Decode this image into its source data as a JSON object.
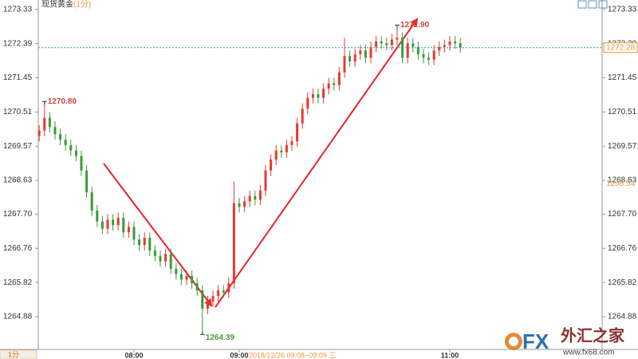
{
  "chart_data": {
    "type": "candlestick",
    "title": "现货黄金",
    "subtitle": "(1分)",
    "categories": [
      null,
      null,
      null,
      null,
      null,
      null,
      null,
      null,
      null,
      null,
      null,
      null,
      null,
      null,
      null,
      null,
      null,
      null,
      "08:00",
      null,
      null,
      null,
      null,
      null,
      null,
      null,
      null,
      null,
      null,
      null,
      null,
      null,
      null,
      null,
      null,
      null,
      null,
      null,
      "09:00",
      null,
      null,
      null,
      null,
      null,
      null,
      null,
      null,
      null,
      null,
      null,
      null,
      null,
      null,
      null,
      null,
      null,
      null,
      null,
      null,
      null,
      null,
      null,
      null,
      null,
      null,
      null,
      null,
      null,
      null,
      null,
      null,
      null,
      null,
      null,
      null,
      null,
      null,
      null,
      "11:00",
      null,
      null
    ],
    "open": [
      1269.85,
      1270.0,
      1270.35,
      1270.1,
      1269.9,
      1269.75,
      1269.6,
      1269.45,
      1269.3,
      1268.9,
      1268.3,
      1267.8,
      1267.5,
      1267.3,
      1267.55,
      1267.4,
      1267.6,
      1267.2,
      1267.35,
      1267.0,
      1266.85,
      1267.05,
      1266.7,
      1266.55,
      1266.4,
      1266.6,
      1266.2,
      1266.05,
      1265.9,
      1266.0,
      1265.8,
      1265.6,
      1265.1,
      1265.3,
      1265.45,
      1265.6,
      1265.55,
      1265.8,
      1268.0,
      1267.9,
      1268.05,
      1268.2,
      1268.1,
      1268.35,
      1268.9,
      1269.2,
      1269.45,
      1269.4,
      1269.6,
      1269.7,
      1270.2,
      1270.6,
      1270.9,
      1271.0,
      1270.9,
      1271.15,
      1271.3,
      1271.25,
      1271.6,
      1272.05,
      1271.9,
      1272.1,
      1272.2,
      1272.0,
      1272.3,
      1272.45,
      1272.4,
      1272.35,
      1272.5,
      1272.55,
      1272.0,
      1272.4,
      1272.3,
      1272.1,
      1272.0,
      1271.95,
      1272.2,
      1272.3,
      1272.35,
      1272.45,
      1272.4
    ],
    "high": [
      1270.15,
      1270.8,
      1270.5,
      1270.25,
      1270.05,
      1269.9,
      1269.75,
      1269.6,
      1269.45,
      1269.05,
      1268.45,
      1267.95,
      1267.65,
      1267.7,
      1267.7,
      1267.75,
      1267.75,
      1267.5,
      1267.5,
      1267.15,
      1267.2,
      1267.2,
      1266.85,
      1266.7,
      1266.75,
      1266.75,
      1266.35,
      1266.2,
      1266.15,
      1266.15,
      1265.95,
      1265.75,
      1265.45,
      1265.6,
      1265.75,
      1265.75,
      1265.95,
      1268.6,
      1268.15,
      1268.2,
      1268.35,
      1268.35,
      1268.5,
      1269.05,
      1269.35,
      1269.6,
      1269.6,
      1269.75,
      1269.85,
      1270.35,
      1270.75,
      1271.05,
      1271.15,
      1271.15,
      1271.3,
      1271.45,
      1271.45,
      1271.75,
      1272.55,
      1272.2,
      1272.25,
      1272.35,
      1272.35,
      1272.45,
      1272.6,
      1272.6,
      1272.55,
      1272.65,
      1272.9,
      1272.7,
      1272.55,
      1272.55,
      1272.45,
      1272.25,
      1272.15,
      1272.35,
      1272.45,
      1272.5,
      1272.6,
      1272.6,
      1272.55
    ],
    "low": [
      1269.7,
      1269.85,
      1269.95,
      1269.75,
      1269.6,
      1269.45,
      1269.3,
      1269.15,
      1268.75,
      1268.15,
      1267.65,
      1267.35,
      1267.15,
      1267.15,
      1267.25,
      1267.25,
      1267.05,
      1267.05,
      1266.85,
      1266.7,
      1266.7,
      1266.55,
      1266.4,
      1266.25,
      1266.25,
      1266.05,
      1265.9,
      1265.75,
      1265.75,
      1265.65,
      1265.45,
      1264.39,
      1264.95,
      1265.15,
      1265.3,
      1265.4,
      1265.4,
      1265.65,
      1267.75,
      1267.75,
      1267.9,
      1267.95,
      1267.95,
      1268.2,
      1268.75,
      1269.05,
      1269.25,
      1269.25,
      1269.45,
      1269.55,
      1270.05,
      1270.45,
      1270.75,
      1270.75,
      1270.75,
      1271.0,
      1271.1,
      1271.1,
      1271.45,
      1271.75,
      1271.75,
      1271.95,
      1271.85,
      1271.85,
      1272.15,
      1272.25,
      1272.2,
      1272.2,
      1272.35,
      1271.85,
      1271.85,
      1272.15,
      1271.95,
      1271.85,
      1271.8,
      1271.8,
      1272.05,
      1272.15,
      1272.2,
      1272.25,
      1272.13
    ],
    "close": [
      1270.0,
      1270.35,
      1270.1,
      1269.9,
      1269.75,
      1269.6,
      1269.45,
      1269.3,
      1268.9,
      1268.3,
      1267.8,
      1267.5,
      1267.3,
      1267.55,
      1267.4,
      1267.6,
      1267.2,
      1267.35,
      1267.0,
      1266.85,
      1267.05,
      1266.7,
      1266.55,
      1266.4,
      1266.6,
      1266.2,
      1266.05,
      1265.9,
      1266.0,
      1265.8,
      1265.6,
      1265.1,
      1265.3,
      1265.45,
      1265.6,
      1265.55,
      1265.8,
      1268.0,
      1267.9,
      1268.05,
      1268.2,
      1268.1,
      1268.35,
      1268.9,
      1269.2,
      1269.45,
      1269.4,
      1269.6,
      1269.7,
      1270.2,
      1270.6,
      1270.9,
      1271.0,
      1270.9,
      1271.15,
      1271.3,
      1271.25,
      1271.6,
      1272.05,
      1271.9,
      1272.1,
      1272.2,
      1272.0,
      1272.3,
      1272.45,
      1272.4,
      1272.35,
      1272.5,
      1272.55,
      1272.0,
      1272.4,
      1272.3,
      1272.1,
      1272.0,
      1271.95,
      1272.2,
      1272.3,
      1272.35,
      1272.45,
      1272.4,
      1272.28
    ],
    "up_color": "#e8392f",
    "down_color": "#3a9a3a",
    "ylim": [
      1263.98,
      1273.59
    ],
    "yticks": [
      1273.33,
      1272.39,
      1271.45,
      1270.51,
      1269.57,
      1268.63,
      {
        "value": 1267.7,
        "label": "1267.70"
      },
      1266.76,
      1265.82,
      1264.88
    ],
    "annotations": [
      {
        "value": 1270.8,
        "label": "1270.80",
        "color": "#d9413a"
      },
      {
        "value": 1264.39,
        "label": "1264.39",
        "color": "#4d9a3e"
      },
      {
        "value": 1272.9,
        "label": "1272.90",
        "color": "#d9413a"
      }
    ],
    "last_price": 1272.28,
    "marker_price": 1268.54,
    "status": "2018/12/26 09:08~09:09 三",
    "period_button": "1分"
  },
  "watermark": {
    "brand": "FX",
    "name": "外汇之家",
    "url": "www.fx68.com"
  }
}
